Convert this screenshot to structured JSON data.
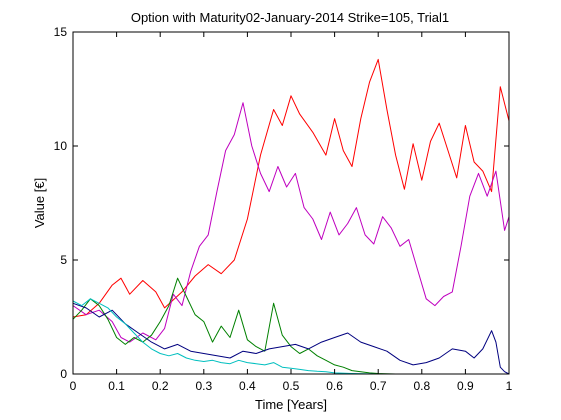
{
  "chart_data": {
    "type": "line",
    "title": "Option with Maturity02-January-2014 Strike=105, Trial1",
    "xlabel": "Time [Years]",
    "ylabel": "Value [€]",
    "xlim": [
      0,
      1
    ],
    "ylim": [
      0,
      15
    ],
    "x_ticks": [
      "0",
      "0.1",
      "0.2",
      "0.3",
      "0.4",
      "0.5",
      "0.6",
      "0.7",
      "0.8",
      "0.9",
      "1"
    ],
    "y_ticks": [
      "0",
      "5",
      "10",
      "15"
    ],
    "grid": false,
    "legend": "none",
    "series": [
      {
        "color": "#ff0000",
        "x": [
          0,
          0.03,
          0.06,
          0.09,
          0.11,
          0.13,
          0.16,
          0.19,
          0.21,
          0.25,
          0.28,
          0.31,
          0.34,
          0.37,
          0.4,
          0.43,
          0.46,
          0.48,
          0.5,
          0.52,
          0.55,
          0.58,
          0.6,
          0.62,
          0.64,
          0.66,
          0.68,
          0.7,
          0.72,
          0.74,
          0.76,
          0.78,
          0.8,
          0.82,
          0.84,
          0.86,
          0.88,
          0.9,
          0.92,
          0.94,
          0.96,
          0.98,
          1.0
        ],
        "values": [
          2.5,
          2.6,
          3.1,
          3.9,
          4.2,
          3.5,
          4.1,
          3.6,
          2.9,
          3.6,
          4.3,
          4.8,
          4.4,
          5.0,
          6.8,
          9.6,
          11.6,
          10.9,
          12.2,
          11.4,
          10.6,
          9.6,
          11.2,
          9.8,
          9.1,
          11.2,
          12.8,
          13.8,
          11.6,
          9.6,
          8.1,
          10.1,
          8.5,
          10.2,
          11.0,
          9.8,
          8.6,
          10.9,
          9.3,
          8.9,
          8.0,
          12.6,
          11.1
        ]
      },
      {
        "color": "#bf00bf",
        "x": [
          0,
          0.03,
          0.06,
          0.09,
          0.11,
          0.13,
          0.16,
          0.19,
          0.21,
          0.23,
          0.25,
          0.27,
          0.29,
          0.31,
          0.33,
          0.35,
          0.37,
          0.39,
          0.41,
          0.43,
          0.45,
          0.47,
          0.49,
          0.51,
          0.53,
          0.55,
          0.57,
          0.59,
          0.61,
          0.63,
          0.65,
          0.67,
          0.69,
          0.71,
          0.73,
          0.75,
          0.77,
          0.79,
          0.81,
          0.83,
          0.85,
          0.87,
          0.89,
          0.91,
          0.93,
          0.95,
          0.97,
          0.99,
          1.0
        ],
        "values": [
          3.0,
          2.6,
          2.8,
          2.3,
          1.6,
          1.4,
          1.8,
          1.5,
          2.0,
          3.5,
          3.0,
          4.5,
          5.6,
          6.1,
          8.0,
          9.8,
          10.5,
          11.9,
          10.0,
          8.8,
          8.0,
          9.1,
          8.2,
          8.8,
          7.3,
          6.8,
          5.9,
          7.1,
          6.1,
          6.6,
          7.3,
          6.1,
          5.7,
          6.9,
          6.4,
          5.6,
          5.9,
          4.6,
          3.3,
          3.0,
          3.4,
          3.6,
          5.6,
          7.8,
          8.8,
          7.8,
          8.9,
          6.3,
          6.9
        ]
      },
      {
        "color": "#008000",
        "x": [
          0,
          0.02,
          0.04,
          0.06,
          0.08,
          0.1,
          0.12,
          0.14,
          0.16,
          0.18,
          0.2,
          0.22,
          0.24,
          0.26,
          0.28,
          0.3,
          0.32,
          0.34,
          0.36,
          0.38,
          0.4,
          0.42,
          0.44,
          0.46,
          0.48,
          0.5,
          0.52,
          0.54,
          0.56,
          0.58,
          0.6,
          0.62,
          0.64,
          0.66,
          0.68,
          0.7,
          0.74,
          0.8,
          0.9,
          1.0
        ],
        "values": [
          2.4,
          2.8,
          3.3,
          3.0,
          2.4,
          1.6,
          1.3,
          1.6,
          1.4,
          1.7,
          2.3,
          3.0,
          4.2,
          3.4,
          2.6,
          2.3,
          1.4,
          2.1,
          1.6,
          2.8,
          1.5,
          1.2,
          1.0,
          3.1,
          1.7,
          1.2,
          0.9,
          1.1,
          0.8,
          0.6,
          0.4,
          0.3,
          0.15,
          0.1,
          0.05,
          0.02,
          0.0,
          0.0,
          0.0,
          0.0
        ]
      },
      {
        "color": "#00007f",
        "x": [
          0,
          0.03,
          0.06,
          0.09,
          0.12,
          0.15,
          0.18,
          0.21,
          0.24,
          0.27,
          0.3,
          0.33,
          0.36,
          0.39,
          0.42,
          0.45,
          0.48,
          0.51,
          0.54,
          0.57,
          0.6,
          0.63,
          0.66,
          0.69,
          0.72,
          0.75,
          0.78,
          0.81,
          0.84,
          0.87,
          0.9,
          0.92,
          0.94,
          0.96,
          0.97,
          0.98,
          0.99,
          1.0
        ],
        "values": [
          3.1,
          2.9,
          2.5,
          2.8,
          2.2,
          1.8,
          1.4,
          1.1,
          1.3,
          1.0,
          0.9,
          0.8,
          0.7,
          1.0,
          0.9,
          1.1,
          1.2,
          1.3,
          1.1,
          1.4,
          1.6,
          1.8,
          1.4,
          1.2,
          1.0,
          0.6,
          0.4,
          0.5,
          0.7,
          1.1,
          1.0,
          0.7,
          1.1,
          1.9,
          1.4,
          0.3,
          0.1,
          0.0
        ]
      },
      {
        "color": "#00bfbf",
        "x": [
          0,
          0.02,
          0.04,
          0.06,
          0.08,
          0.1,
          0.12,
          0.14,
          0.16,
          0.18,
          0.2,
          0.22,
          0.24,
          0.26,
          0.28,
          0.3,
          0.32,
          0.34,
          0.36,
          0.38,
          0.4,
          0.42,
          0.44,
          0.46,
          0.48,
          0.5,
          0.52,
          0.54,
          0.56,
          0.58,
          0.6,
          0.64,
          0.7,
          0.8,
          0.9,
          1.0
        ],
        "values": [
          3.2,
          3.0,
          3.3,
          3.1,
          2.9,
          2.5,
          2.2,
          1.8,
          1.4,
          1.1,
          0.9,
          0.8,
          0.9,
          0.7,
          0.6,
          0.55,
          0.6,
          0.5,
          0.45,
          0.6,
          0.5,
          0.45,
          0.4,
          0.5,
          0.3,
          0.25,
          0.2,
          0.15,
          0.12,
          0.1,
          0.05,
          0.02,
          0.0,
          0.0,
          0.0,
          0.0
        ]
      }
    ]
  }
}
